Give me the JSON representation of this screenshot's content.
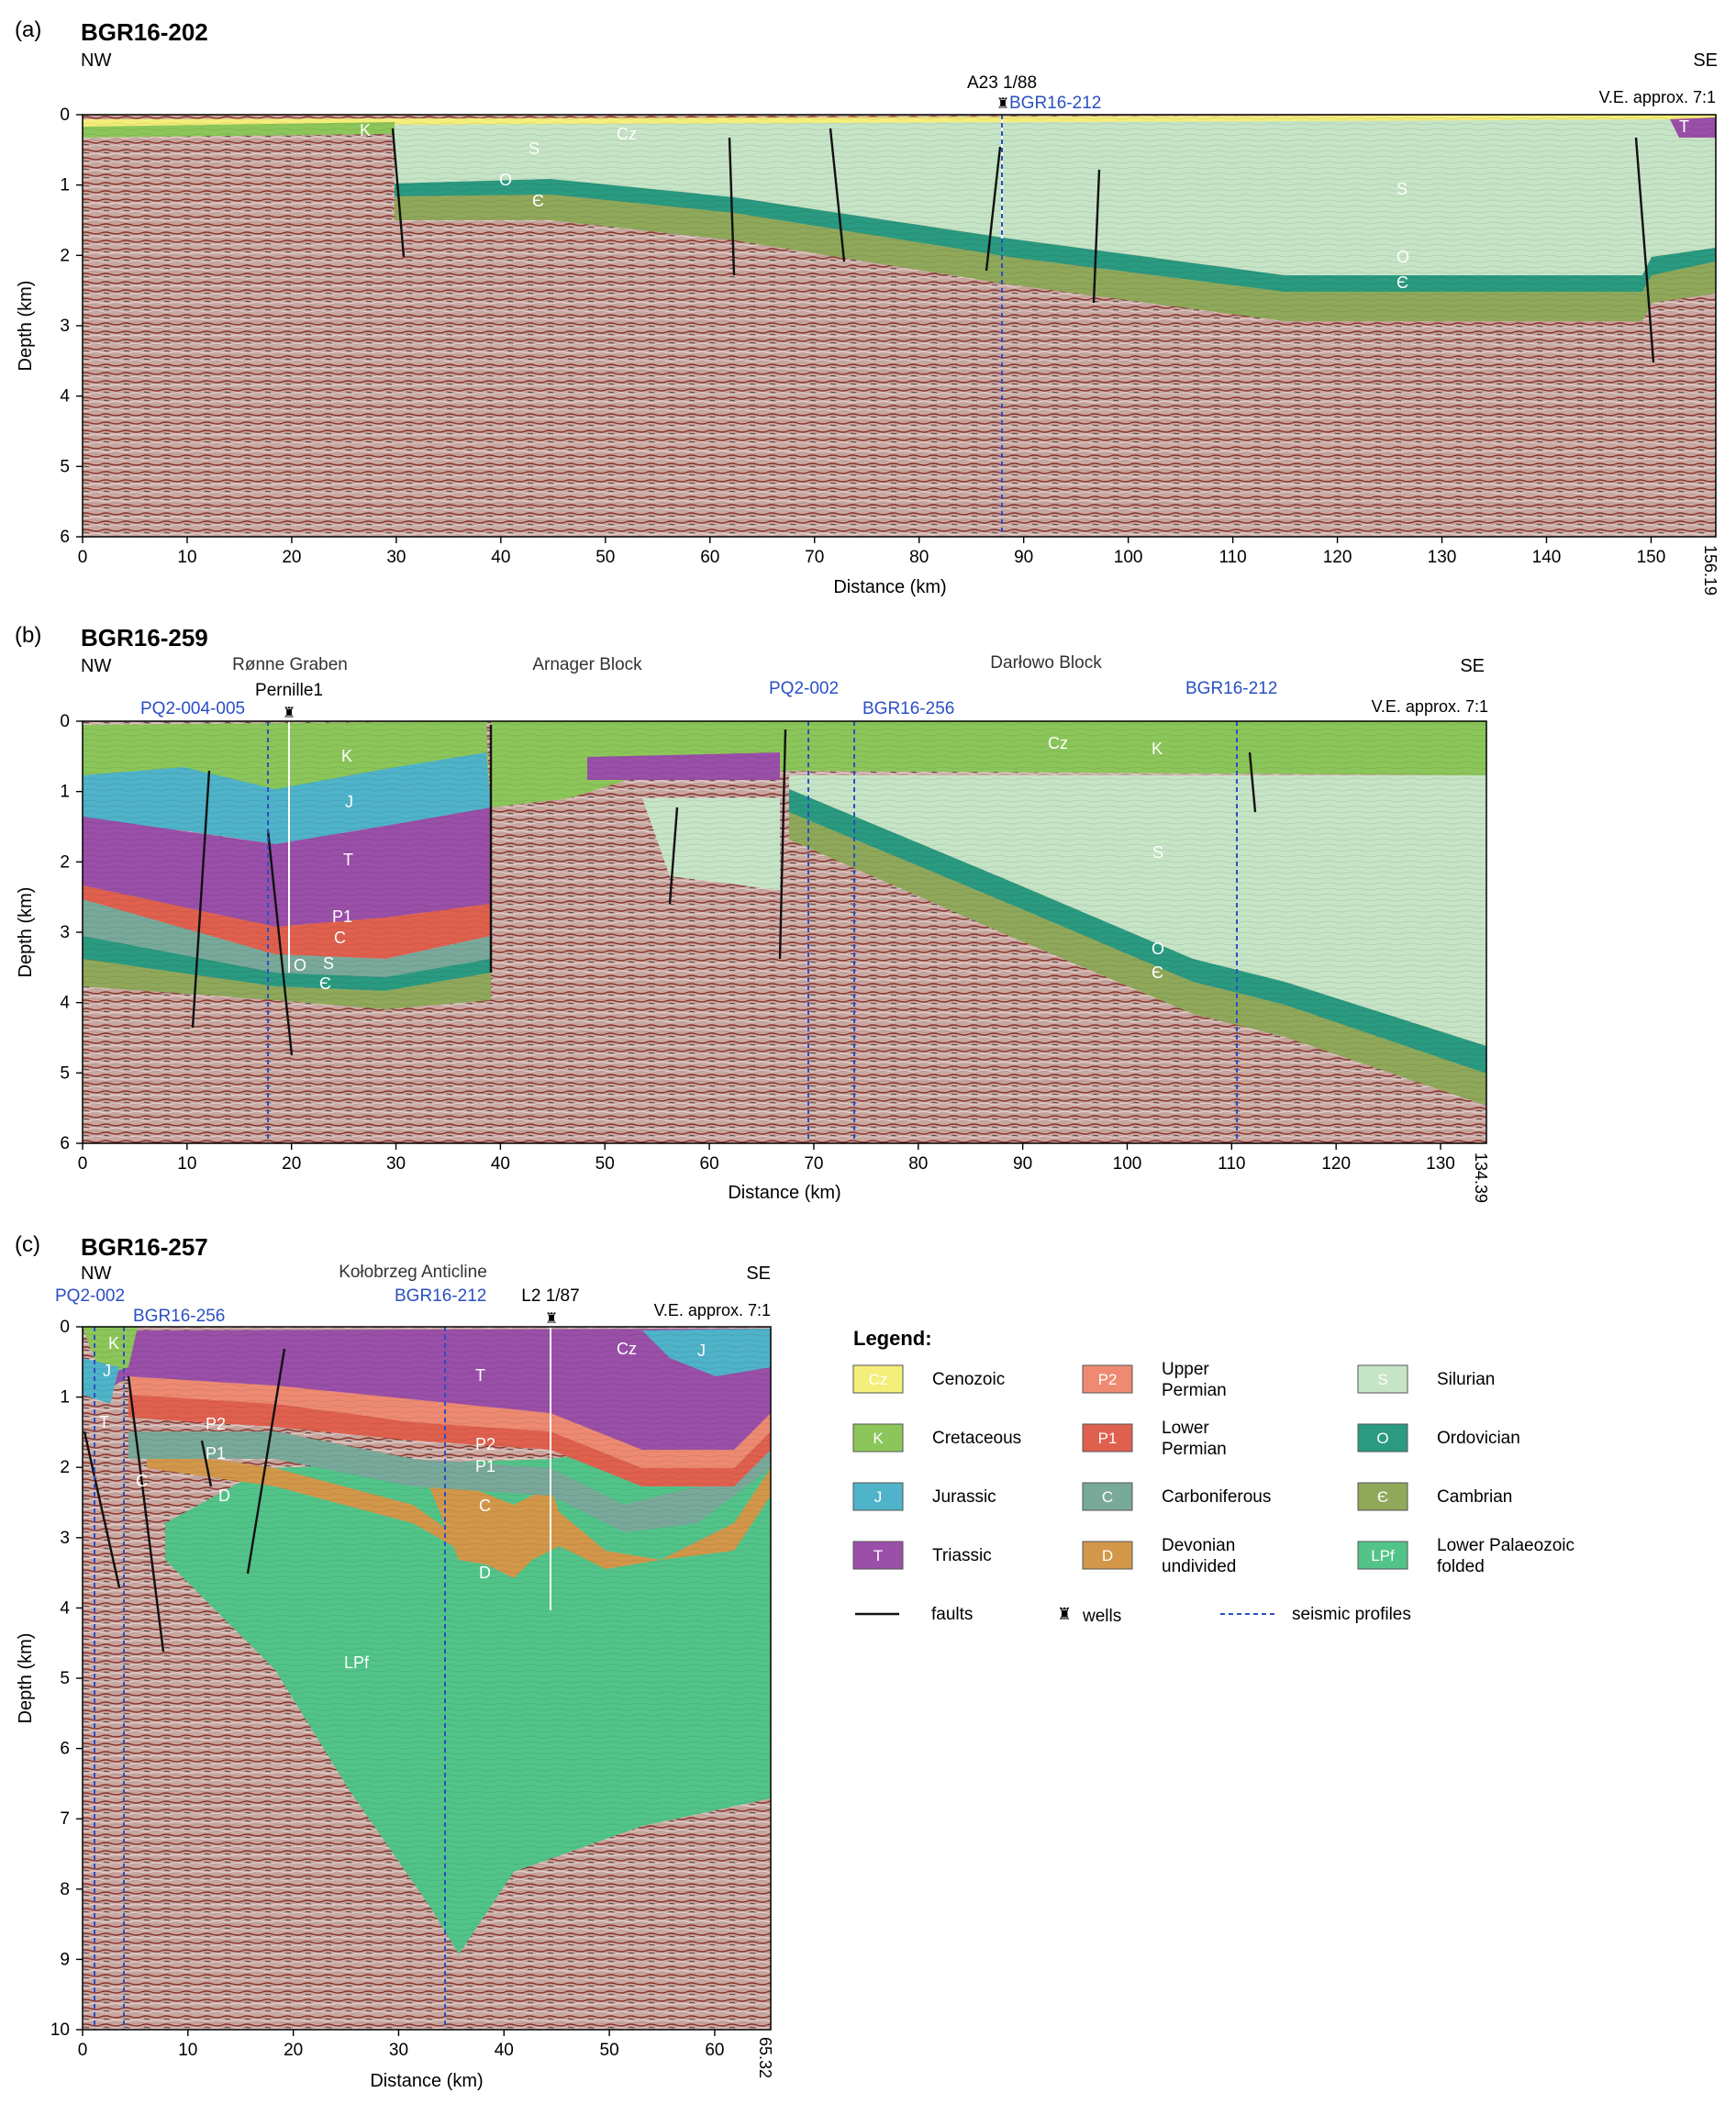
{
  "panels": [
    {
      "id": "a",
      "letter": "(a)",
      "title": "BGR16-202",
      "nw": "NW",
      "se": "SE",
      "ve": "V.E. approx. 7:1",
      "end_km": "156.19",
      "xlabel": "Distance (km)",
      "ylabel": "Depth (km)",
      "xticks": [
        "0",
        "10",
        "20",
        "30",
        "40",
        "50",
        "60",
        "70",
        "80",
        "90",
        "100",
        "110",
        "120",
        "130",
        "140",
        "150"
      ],
      "yticks": [
        "0",
        "1",
        "2",
        "3",
        "4",
        "5",
        "6"
      ],
      "well": "A23 1/88",
      "profiles": [
        "BGR16-212"
      ],
      "unit_labels": [
        "K",
        "Cz",
        "S",
        "O",
        "Є",
        "S",
        "O",
        "Є",
        "T"
      ]
    },
    {
      "id": "b",
      "letter": "(b)",
      "title": "BGR16-259",
      "nw": "NW",
      "se": "SE",
      "ve": "V.E. approx. 7:1",
      "end_km": "134.39",
      "xlabel": "Distance (km)",
      "ylabel": "Depth (km)",
      "xticks": [
        "0",
        "10",
        "20",
        "30",
        "40",
        "50",
        "60",
        "70",
        "80",
        "90",
        "100",
        "110",
        "120",
        "130"
      ],
      "yticks": [
        "0",
        "1",
        "2",
        "3",
        "4",
        "5",
        "6"
      ],
      "well": "Pernille1",
      "structures": [
        "Rønne Graben",
        "Arnager Block",
        "Darłowo Block"
      ],
      "profiles": [
        "PQ2-004-005",
        "PQ2-002",
        "BGR16-256",
        "BGR16-212"
      ],
      "unit_labels": [
        "K",
        "J",
        "T",
        "P1",
        "C",
        "O",
        "S",
        "Є",
        "Cz",
        "K",
        "S",
        "O",
        "Є"
      ]
    },
    {
      "id": "c",
      "letter": "(c)",
      "title": "BGR16-257",
      "nw": "NW",
      "se": "SE",
      "ve": "V.E. approx. 7:1",
      "end_km": "65.32",
      "xlabel": "Distance (km)",
      "ylabel": "Depth (km)",
      "xticks": [
        "0",
        "10",
        "20",
        "30",
        "40",
        "50",
        "60"
      ],
      "yticks": [
        "0",
        "1",
        "2",
        "3",
        "4",
        "5",
        "6",
        "7",
        "8",
        "9",
        "10"
      ],
      "well": "L2 1/87",
      "structures": [
        "Kołobrzeg Anticline"
      ],
      "profiles": [
        "PQ2-002",
        "BGR16-256",
        "BGR16-212"
      ],
      "unit_labels": [
        "K",
        "J",
        "T",
        "C",
        "P2",
        "P1",
        "D",
        "T",
        "P2",
        "P1",
        "C",
        "D",
        "LPf",
        "Cz",
        "J"
      ]
    }
  ],
  "legend": {
    "title": "Legend:",
    "items": [
      {
        "code": "Cz",
        "name": "Cenozoic",
        "color": "#f4ee7a"
      },
      {
        "code": "K",
        "name": "Cretaceous",
        "color": "#8cc65a"
      },
      {
        "code": "J",
        "name": "Jurassic",
        "color": "#4fb3c9"
      },
      {
        "code": "T",
        "name": "Triassic",
        "color": "#9a4fa8"
      },
      {
        "code": "P2",
        "name": "Upper\nPermian",
        "color": "#ee8a72"
      },
      {
        "code": "P1",
        "name": "Lower\nPermian",
        "color": "#e0604e"
      },
      {
        "code": "C",
        "name": "Carboniferous",
        "color": "#79a99a"
      },
      {
        "code": "D",
        "name": "Devonian\nundivided",
        "color": "#d3974a"
      },
      {
        "code": "S",
        "name": "Silurian",
        "color": "#c6e4c6"
      },
      {
        "code": "O",
        "name": "Ordovician",
        "color": "#2a9a80"
      },
      {
        "code": "Є",
        "name": "Cambrian",
        "color": "#8fa85a"
      },
      {
        "code": "LPf",
        "name": "Lower Palaeozoic\nfolded",
        "color": "#52c489"
      }
    ],
    "faults": "faults",
    "wells": "wells",
    "seismic": "seismic profiles"
  },
  "colors": {
    "seismic_bg": "#c29a92",
    "seismic_dark": "#7e3a34",
    "profile_line": "#2a4fc4",
    "fault": "#111111"
  }
}
